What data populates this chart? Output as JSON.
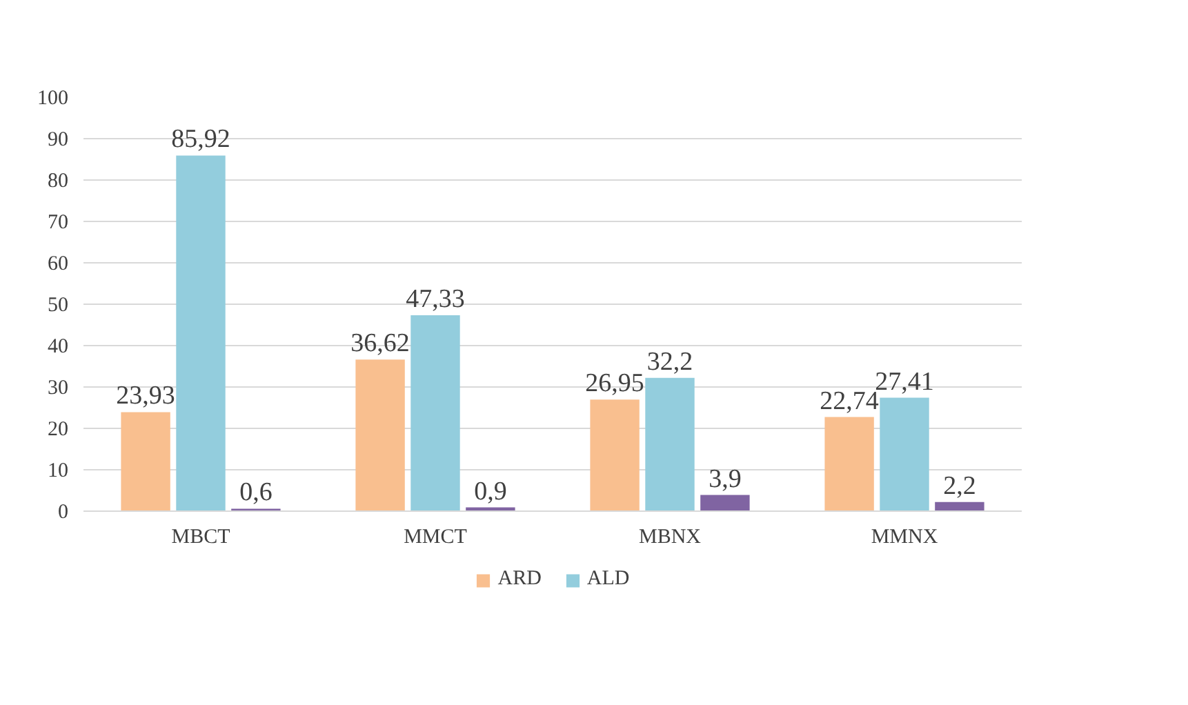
{
  "chart_data": {
    "type": "bar",
    "categories": [
      "MBCT",
      "MMCT",
      "MBNX",
      "MMNX"
    ],
    "series": [
      {
        "name": "ARD",
        "color": "#f9bf8f",
        "values": [
          23.93,
          36.62,
          26.95,
          22.74
        ],
        "value_labels": [
          "23,93",
          "36,62",
          "26,95",
          "22,74"
        ]
      },
      {
        "name": "ALD",
        "color": "#93cddd",
        "values": [
          85.92,
          47.33,
          32.2,
          27.41
        ],
        "value_labels": [
          "85,92",
          "47,33",
          "32,2",
          "27,41"
        ]
      },
      {
        "color": "#8064a2",
        "values": [
          0.6,
          0.9,
          3.9,
          2.2
        ],
        "value_labels": [
          "0,6",
          "0,9",
          "3,9",
          "2,2"
        ]
      }
    ],
    "ylim": [
      0,
      100
    ],
    "yticks": [
      0,
      10,
      20,
      30,
      40,
      50,
      60,
      70,
      80,
      90,
      100
    ],
    "grid": "y",
    "legend": "bottom"
  }
}
